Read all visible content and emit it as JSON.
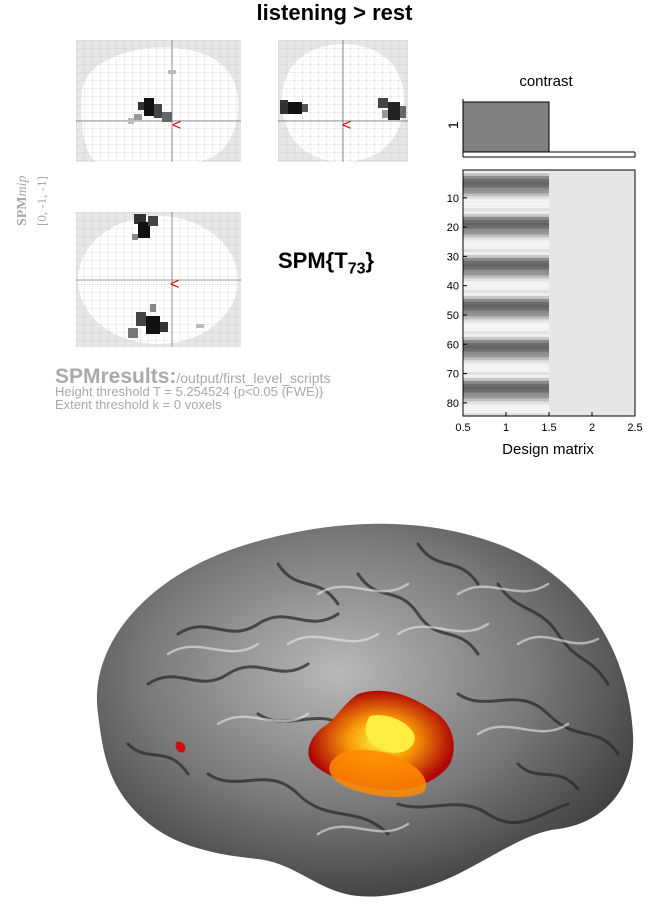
{
  "window": {
    "title": "listening > rest"
  },
  "mip": {
    "side_label_main": "SPM",
    "side_label_sub": "mip",
    "coords": "[0, -1, -1]",
    "cursor_symbol": "<",
    "statistic_prefix": "SPM{T",
    "statistic_df": "73",
    "statistic_suffix": "}"
  },
  "results": {
    "heading": "SPMresults:",
    "path": "/output/first_level_scripts",
    "height_threshold": "Height threshold T = 5.254524  {p<0.05 (FWE)}",
    "extent_threshold": "Extent threshold k = 0 voxels"
  },
  "contrast": {
    "title": "contrast",
    "y_label": "1",
    "weight": 1
  },
  "design_matrix": {
    "title": "Design matrix",
    "x_ticks": [
      "0.5",
      "1",
      "1.5",
      "2",
      "2.5"
    ],
    "y_ticks": [
      "10",
      "20",
      "30",
      "40",
      "50",
      "60",
      "70",
      "80"
    ],
    "n_scans": 84,
    "block_length": 7,
    "colors": {
      "on": "#6a6a6a",
      "off": "#f2f2f2",
      "constant": "#e6e6e6"
    }
  },
  "colors": {
    "cursor": "#dd0000",
    "blob_dark": "#222222",
    "label_grey": "#a9a9a9"
  }
}
